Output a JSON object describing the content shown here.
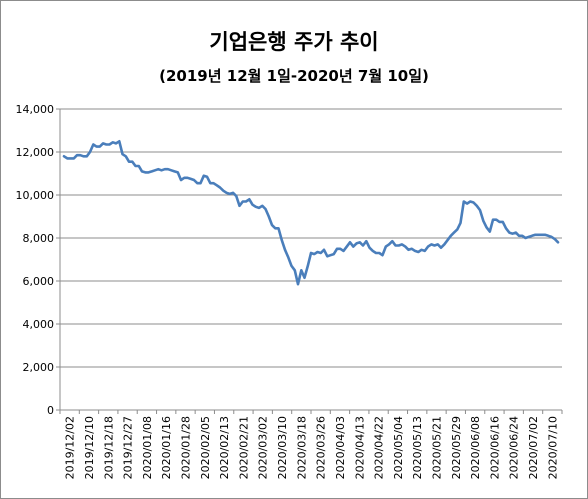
{
  "title": "기업은행 주가 추이",
  "subtitle": "(2019년 12월 1일-2020년 7월 10일)",
  "colors": {
    "line": "#4a7ebb",
    "grid": "#8c8c8c",
    "axis": "#8c8c8c"
  },
  "chart_data": {
    "type": "line",
    "title": "기업은행 주가 추이",
    "subtitle": "(2019년 12월 1일-2020년 7월 10일)",
    "xlabel": "",
    "ylabel": "",
    "ylim": [
      0,
      14000
    ],
    "yticks": [
      0,
      2000,
      4000,
      6000,
      8000,
      10000,
      12000,
      14000
    ],
    "ytick_labels": [
      "0",
      "2,000",
      "4,000",
      "6,000",
      "8,000",
      "10,000",
      "12,000",
      "14,000"
    ],
    "grid": true,
    "legend": "none",
    "xtick_labels": [
      "2019/12/02",
      "2019/12/10",
      "2019/12/18",
      "2019/12/27",
      "2020/01/08",
      "2020/01/16",
      "2020/01/28",
      "2020/02/05",
      "2020/02/13",
      "2020/02/21",
      "2020/03/02",
      "2020/03/10",
      "2020/03/18",
      "2020/03/26",
      "2020/04/03",
      "2020/04/13",
      "2020/04/22",
      "2020/05/04",
      "2020/05/13",
      "2020/05/21",
      "2020/05/29",
      "2020/06/08",
      "2020/06/16",
      "2020/06/24",
      "2020/07/02",
      "2020/07/10"
    ],
    "series": [
      {
        "values": [
          11800,
          11700,
          11700,
          11700,
          11850,
          11850,
          11800,
          11800,
          12000,
          12350,
          12250,
          12250,
          12400,
          12350,
          12350,
          12450,
          12400,
          12500,
          11900,
          11800,
          11550,
          11550,
          11350,
          11350,
          11100,
          11050,
          11050,
          11100,
          11150,
          11200,
          11150,
          11200,
          11200,
          11150,
          11100,
          11050,
          10700,
          10800,
          10800,
          10750,
          10700,
          10550,
          10550,
          10900,
          10850,
          10550,
          10550,
          10450,
          10350,
          10200,
          10100,
          10050,
          10100,
          9950,
          9500,
          9700,
          9700,
          9800,
          9550,
          9450,
          9400,
          9500,
          9350,
          9000,
          8600,
          8450,
          8450,
          7900,
          7450,
          7100,
          6700,
          6500,
          5850,
          6500,
          6150,
          6700,
          7300,
          7250,
          7350,
          7300,
          7450,
          7150,
          7200,
          7250,
          7500,
          7500,
          7400,
          7600,
          7800,
          7600,
          7750,
          7800,
          7650,
          7850,
          7550,
          7400,
          7300,
          7300,
          7200,
          7600,
          7700,
          7850,
          7650,
          7650,
          7700,
          7600,
          7450,
          7500,
          7400,
          7350,
          7450,
          7400,
          7600,
          7700,
          7650,
          7700,
          7550,
          7700,
          7900,
          8100,
          8250,
          8400,
          8700,
          9700,
          9600,
          9700,
          9650,
          9500,
          9300,
          8800,
          8500,
          8300,
          8850,
          8850,
          8750,
          8750,
          8450,
          8250,
          8200,
          8250,
          8100,
          8100,
          8000,
          8050,
          8100,
          8150,
          8150,
          8150,
          8150,
          8100,
          8050,
          7950,
          7800
        ]
      }
    ]
  }
}
